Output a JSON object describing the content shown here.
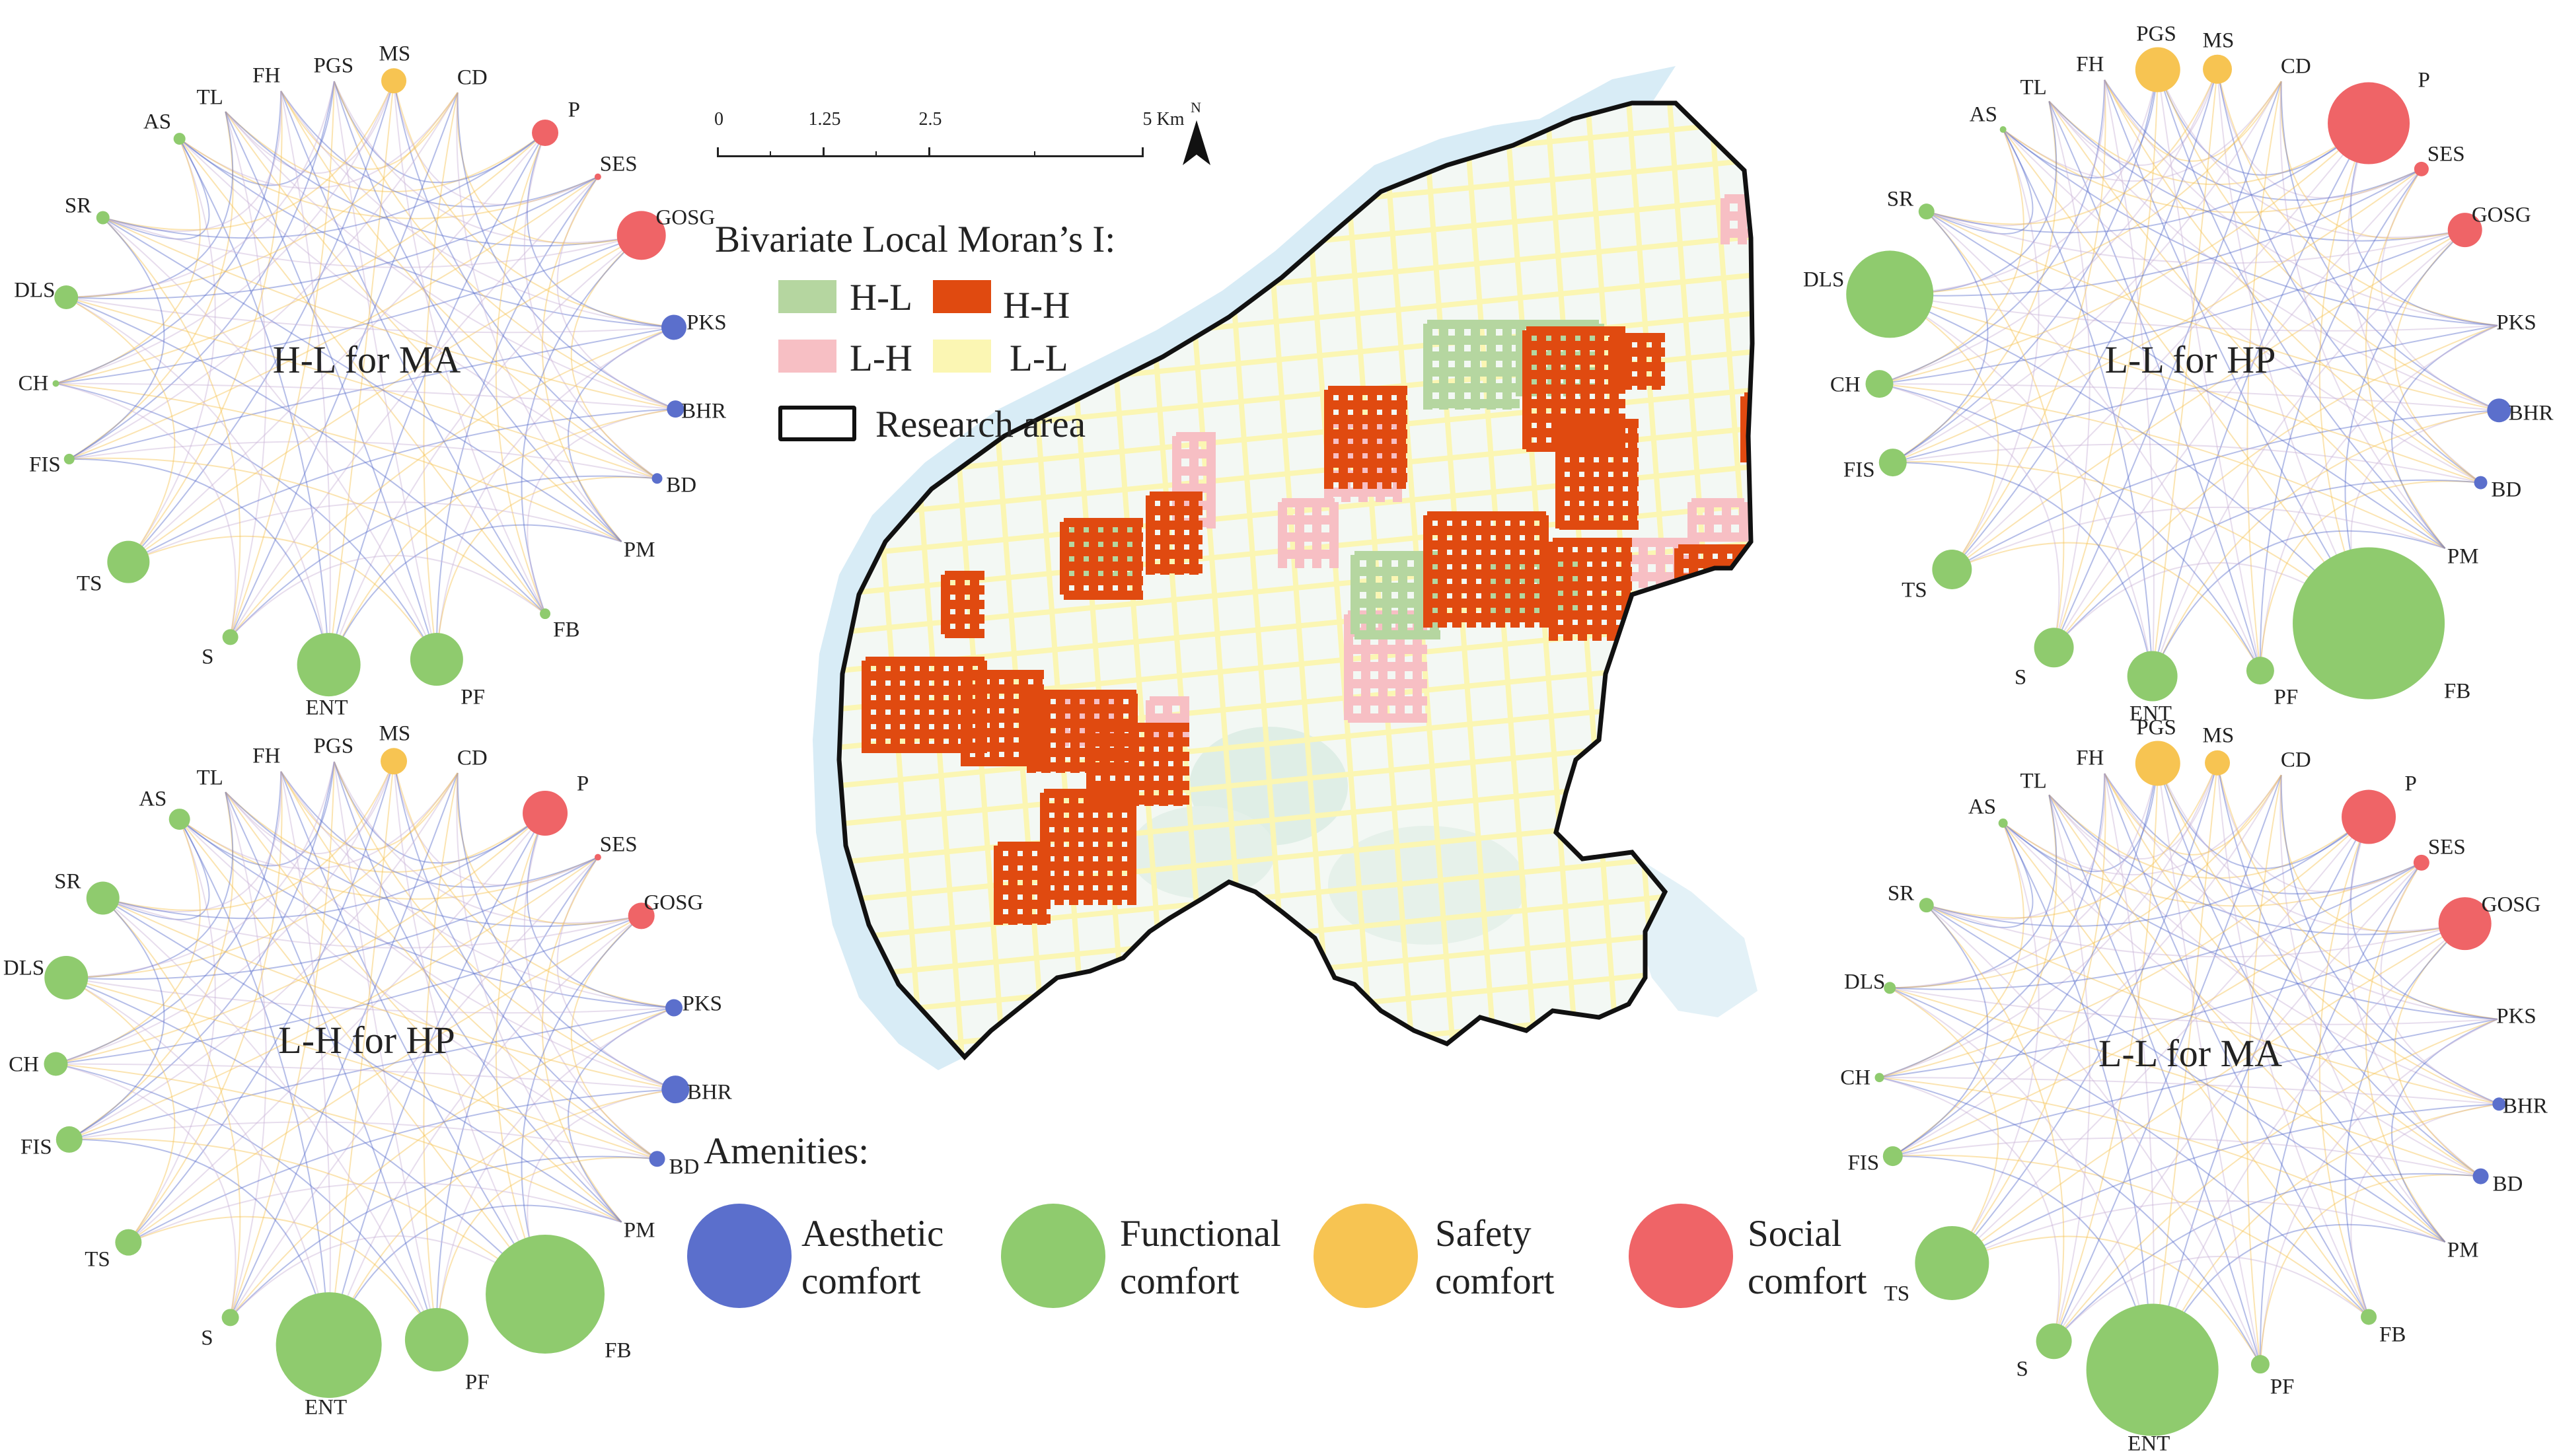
{
  "colors": {
    "aesthetic": "#5b6fcc",
    "functional": "#8fcb6e",
    "safety": "#f7c452",
    "social": "#ef6467",
    "hl": "#b5d6a0",
    "hh": "#e04a10",
    "lh": "#f7bfc4",
    "ll": "#fbf6b3",
    "river": "#d8ecf6",
    "lake": "#dfeee6"
  },
  "scale": {
    "ticks": [
      "0",
      "1.25",
      "2.5",
      "5 Km"
    ],
    "north": "N"
  },
  "legend": {
    "title": "Bivariate Local Moran’s I:",
    "hl": "H-L",
    "hh": "H-H",
    "lh": "L-H",
    "ll": "L-L",
    "research": "Research area"
  },
  "amenities": {
    "title": "Amenities:",
    "items": [
      {
        "line1": "Aesthetic",
        "line2": "comfort",
        "color": "#5b6fcc"
      },
      {
        "line1": "Functional",
        "line2": "comfort",
        "color": "#8fcb6e"
      },
      {
        "line1": "Safety",
        "line2": "comfort",
        "color": "#f7c452"
      },
      {
        "line1": "Social",
        "line2": "comfort",
        "color": "#ef6467"
      }
    ]
  },
  "networks": [
    {
      "title": "H-L for MA",
      "nodes": [
        {
          "name": "AS",
          "cat": "functional",
          "size": 0.09
        },
        {
          "name": "TL",
          "cat": "functional",
          "size": 0.0
        },
        {
          "name": "FH",
          "cat": "functional",
          "size": 0.0
        },
        {
          "name": "PGS",
          "cat": "safety",
          "size": 0.0
        },
        {
          "name": "MS",
          "cat": "safety",
          "size": 0.19
        },
        {
          "name": "CD",
          "cat": "safety",
          "size": 0.0
        },
        {
          "name": "P",
          "cat": "social",
          "size": 0.2
        },
        {
          "name": "SES",
          "cat": "social",
          "size": 0.03
        },
        {
          "name": "GOSG",
          "cat": "social",
          "size": 0.37
        },
        {
          "name": "PKS",
          "cat": "aesthetic",
          "size": 0.19
        },
        {
          "name": "BHR",
          "cat": "aesthetic",
          "size": 0.13
        },
        {
          "name": "BD",
          "cat": "aesthetic",
          "size": 0.08
        },
        {
          "name": "PM",
          "cat": "aesthetic",
          "size": 0.0
        },
        {
          "name": "FB",
          "cat": "functional",
          "size": 0.08
        },
        {
          "name": "PF",
          "cat": "functional",
          "size": 0.4
        },
        {
          "name": "ENT",
          "cat": "functional",
          "size": 0.48
        },
        {
          "name": "S",
          "cat": "functional",
          "size": 0.12
        },
        {
          "name": "TS",
          "cat": "functional",
          "size": 0.32
        },
        {
          "name": "FIS",
          "cat": "functional",
          "size": 0.08
        },
        {
          "name": "CH",
          "cat": "functional",
          "size": 0.05
        },
        {
          "name": "DLS",
          "cat": "functional",
          "size": 0.18
        },
        {
          "name": "SR",
          "cat": "functional",
          "size": 0.1
        }
      ]
    },
    {
      "title": "L-H for HP",
      "nodes": [
        {
          "name": "AS",
          "cat": "functional",
          "size": 0.16
        },
        {
          "name": "TL",
          "cat": "functional",
          "size": 0.0
        },
        {
          "name": "FH",
          "cat": "functional",
          "size": 0.0
        },
        {
          "name": "PGS",
          "cat": "safety",
          "size": 0.0
        },
        {
          "name": "MS",
          "cat": "safety",
          "size": 0.2
        },
        {
          "name": "CD",
          "cat": "safety",
          "size": 0.0
        },
        {
          "name": "P",
          "cat": "social",
          "size": 0.34
        },
        {
          "name": "SES",
          "cat": "social",
          "size": 0.04
        },
        {
          "name": "GOSG",
          "cat": "social",
          "size": 0.2
        },
        {
          "name": "PKS",
          "cat": "aesthetic",
          "size": 0.13
        },
        {
          "name": "BHR",
          "cat": "aesthetic",
          "size": 0.21
        },
        {
          "name": "BD",
          "cat": "aesthetic",
          "size": 0.12
        },
        {
          "name": "PM",
          "cat": "aesthetic",
          "size": 0.0
        },
        {
          "name": "FB",
          "cat": "functional",
          "size": 0.9
        },
        {
          "name": "PF",
          "cat": "functional",
          "size": 0.48
        },
        {
          "name": "ENT",
          "cat": "functional",
          "size": 0.8
        },
        {
          "name": "S",
          "cat": "functional",
          "size": 0.13
        },
        {
          "name": "TS",
          "cat": "functional",
          "size": 0.2
        },
        {
          "name": "FIS",
          "cat": "functional",
          "size": 0.2
        },
        {
          "name": "CH",
          "cat": "functional",
          "size": 0.18
        },
        {
          "name": "DLS",
          "cat": "functional",
          "size": 0.33
        },
        {
          "name": "SR",
          "cat": "functional",
          "size": 0.25
        }
      ]
    },
    {
      "title": "L-L for HP",
      "nodes": [
        {
          "name": "AS",
          "cat": "functional",
          "size": 0.04
        },
        {
          "name": "TL",
          "cat": "functional",
          "size": 0.0
        },
        {
          "name": "FH",
          "cat": "functional",
          "size": 0.0
        },
        {
          "name": "PGS",
          "cat": "safety",
          "size": 0.34
        },
        {
          "name": "MS",
          "cat": "safety",
          "size": 0.22
        },
        {
          "name": "CD",
          "cat": "safety",
          "size": 0.0
        },
        {
          "name": "P",
          "cat": "social",
          "size": 0.62
        },
        {
          "name": "SES",
          "cat": "social",
          "size": 0.11
        },
        {
          "name": "GOSG",
          "cat": "social",
          "size": 0.26
        },
        {
          "name": "PKS",
          "cat": "aesthetic",
          "size": 0.0
        },
        {
          "name": "BHR",
          "cat": "aesthetic",
          "size": 0.18
        },
        {
          "name": "BD",
          "cat": "aesthetic",
          "size": 0.1
        },
        {
          "name": "PM",
          "cat": "aesthetic",
          "size": 0.0
        },
        {
          "name": "FB",
          "cat": "functional",
          "size": 1.15
        },
        {
          "name": "PF",
          "cat": "functional",
          "size": 0.21
        },
        {
          "name": "ENT",
          "cat": "functional",
          "size": 0.38
        },
        {
          "name": "S",
          "cat": "functional",
          "size": 0.3
        },
        {
          "name": "TS",
          "cat": "functional",
          "size": 0.3
        },
        {
          "name": "FIS",
          "cat": "functional",
          "size": 0.21
        },
        {
          "name": "CH",
          "cat": "functional",
          "size": 0.21
        },
        {
          "name": "DLS",
          "cat": "functional",
          "size": 0.66
        },
        {
          "name": "SR",
          "cat": "functional",
          "size": 0.12
        }
      ]
    },
    {
      "title": "L-L for MA",
      "nodes": [
        {
          "name": "AS",
          "cat": "functional",
          "size": 0.07
        },
        {
          "name": "TL",
          "cat": "functional",
          "size": 0.0
        },
        {
          "name": "FH",
          "cat": "functional",
          "size": 0.0
        },
        {
          "name": "PGS",
          "cat": "safety",
          "size": 0.34
        },
        {
          "name": "MS",
          "cat": "safety",
          "size": 0.19
        },
        {
          "name": "CD",
          "cat": "safety",
          "size": 0.0
        },
        {
          "name": "P",
          "cat": "social",
          "size": 0.41
        },
        {
          "name": "SES",
          "cat": "social",
          "size": 0.12
        },
        {
          "name": "GOSG",
          "cat": "social",
          "size": 0.4
        },
        {
          "name": "PKS",
          "cat": "aesthetic",
          "size": 0.0
        },
        {
          "name": "BHR",
          "cat": "aesthetic",
          "size": 0.1
        },
        {
          "name": "BD",
          "cat": "aesthetic",
          "size": 0.12
        },
        {
          "name": "PM",
          "cat": "aesthetic",
          "size": 0.0
        },
        {
          "name": "FB",
          "cat": "functional",
          "size": 0.12
        },
        {
          "name": "PF",
          "cat": "functional",
          "size": 0.14
        },
        {
          "name": "ENT",
          "cat": "functional",
          "size": 1.0
        },
        {
          "name": "S",
          "cat": "functional",
          "size": 0.27
        },
        {
          "name": "TS",
          "cat": "functional",
          "size": 0.56
        },
        {
          "name": "FIS",
          "cat": "functional",
          "size": 0.15
        },
        {
          "name": "CH",
          "cat": "functional",
          "size": 0.07
        },
        {
          "name": "DLS",
          "cat": "functional",
          "size": 0.09
        },
        {
          "name": "SR",
          "cat": "functional",
          "size": 0.11
        }
      ]
    }
  ]
}
